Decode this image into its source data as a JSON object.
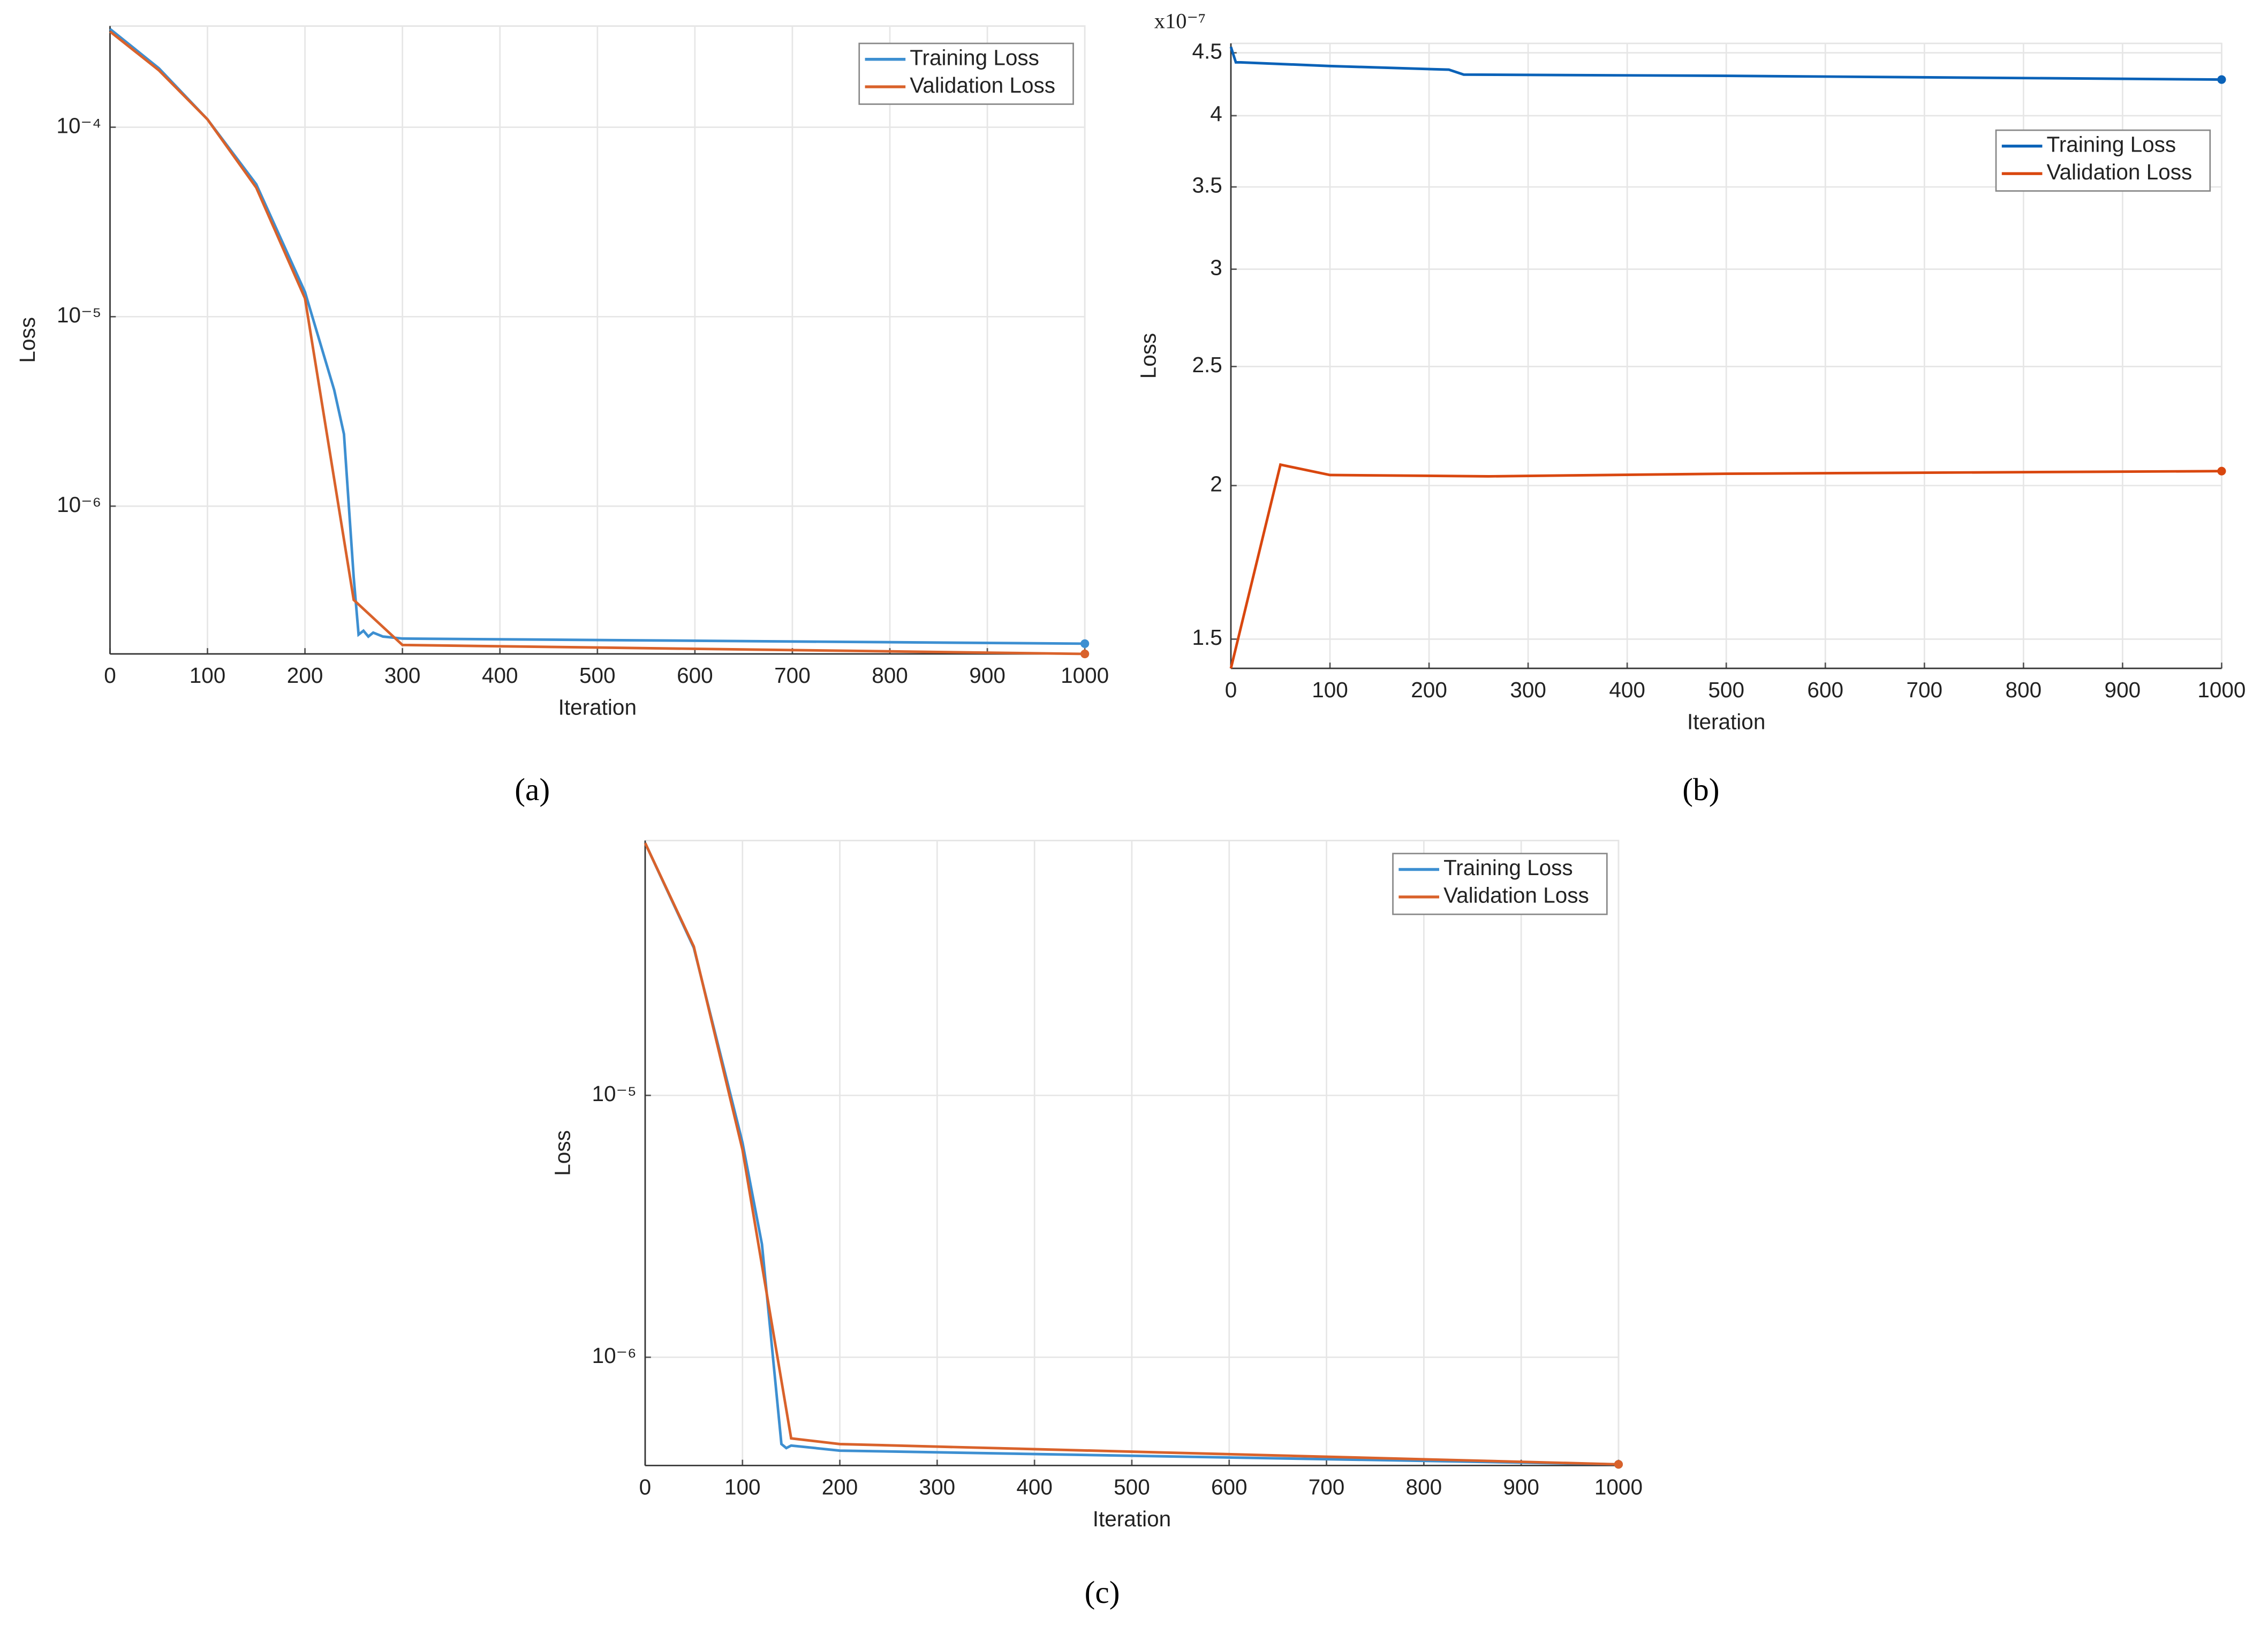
{
  "chart_data": [
    {
      "type": "line",
      "caption": "(a)",
      "xlabel": "Iteration",
      "ylabel": "Loss",
      "log_y": true,
      "grid": true,
      "legend": "upper right",
      "xlim": [
        0,
        1000
      ],
      "xticks": [
        0,
        100,
        200,
        300,
        400,
        500,
        600,
        700,
        800,
        900,
        1000
      ],
      "ylim": [
        1.66e-07,
        0.000342
      ],
      "yticks": [
        {
          "value": 1e-06,
          "label": "10⁻⁶"
        },
        {
          "value": 1e-05,
          "label": "10⁻⁵"
        },
        {
          "value": 0.0001,
          "label": "10⁻⁴"
        }
      ],
      "series": [
        {
          "name": "Training Loss",
          "color": "#3d8fd1",
          "x": [
            0,
            50,
            100,
            150,
            200,
            230,
            240,
            250,
            255,
            260,
            265,
            270,
            280,
            300,
            1000
          ],
          "values": [
            0.00033,
            0.000205,
            0.00011,
            5e-05,
            1.35e-05,
            4.1e-06,
            2.4e-06,
            4.2e-07,
            2.1e-07,
            2.2e-07,
            2.05e-07,
            2.15e-07,
            2.05e-07,
            2e-07,
            1.88e-07
          ]
        },
        {
          "name": "Validation Loss",
          "color": "#d9622b",
          "x": [
            0,
            50,
            100,
            150,
            200,
            250,
            300,
            1000
          ],
          "values": [
            0.00032,
            0.0002,
            0.00011,
            4.8e-05,
            1.25e-05,
            3.2e-07,
            1.85e-07,
            1.66e-07
          ]
        }
      ]
    },
    {
      "type": "line",
      "caption": "(b)",
      "xlabel": "Iteration",
      "ylabel": "Loss",
      "y_multiplier": "x10⁻⁷",
      "log_y": true,
      "grid": true,
      "legend": "upper right",
      "xlim": [
        0,
        1000
      ],
      "xticks": [
        0,
        100,
        200,
        300,
        400,
        500,
        600,
        700,
        800,
        900,
        1000
      ],
      "ylim": [
        1.42,
        4.58
      ],
      "yticks": [
        1.5,
        2,
        2.5,
        3,
        3.5,
        4,
        4.5
      ],
      "series": [
        {
          "name": "Training Loss",
          "color": "#0a62b8",
          "x": [
            0,
            5,
            10,
            100,
            220,
            235,
            500,
            1000
          ],
          "values": [
            4.55,
            4.42,
            4.42,
            4.39,
            4.36,
            4.32,
            4.31,
            4.28
          ]
        },
        {
          "name": "Validation Loss",
          "color": "#d9470f",
          "x": [
            0,
            50,
            100,
            260,
            500,
            1000
          ],
          "values": [
            1.42,
            2.08,
            2.04,
            2.035,
            2.045,
            2.055
          ]
        }
      ]
    },
    {
      "type": "line",
      "caption": "(c)",
      "xlabel": "Iteration",
      "ylabel": "Loss",
      "log_y": true,
      "grid": true,
      "legend": "upper right",
      "xlim": [
        0,
        1000
      ],
      "xticks": [
        0,
        100,
        200,
        300,
        400,
        500,
        600,
        700,
        800,
        900,
        1000
      ],
      "ylim": [
        3.86e-07,
        9.4e-05
      ],
      "yticks": [
        {
          "value": 1e-06,
          "label": "10⁻⁶"
        },
        {
          "value": 1e-05,
          "label": "10⁻⁵"
        }
      ],
      "series": [
        {
          "name": "Training Loss",
          "color": "#3d8fd1",
          "x": [
            0,
            50,
            100,
            120,
            140,
            145,
            150,
            200,
            1000
          ],
          "values": [
            9.2e-05,
            3.66e-05,
            6.6e-06,
            2.7e-06,
            4.66e-07,
            4.5e-07,
            4.6e-07,
            4.4e-07,
            3.9e-07
          ]
        },
        {
          "name": "Validation Loss",
          "color": "#d9622b",
          "x": [
            0,
            50,
            100,
            150,
            200,
            1000
          ],
          "values": [
            9.2e-05,
            3.7e-05,
            6.2e-06,
            4.9e-07,
            4.66e-07,
            3.9e-07
          ]
        }
      ]
    }
  ]
}
